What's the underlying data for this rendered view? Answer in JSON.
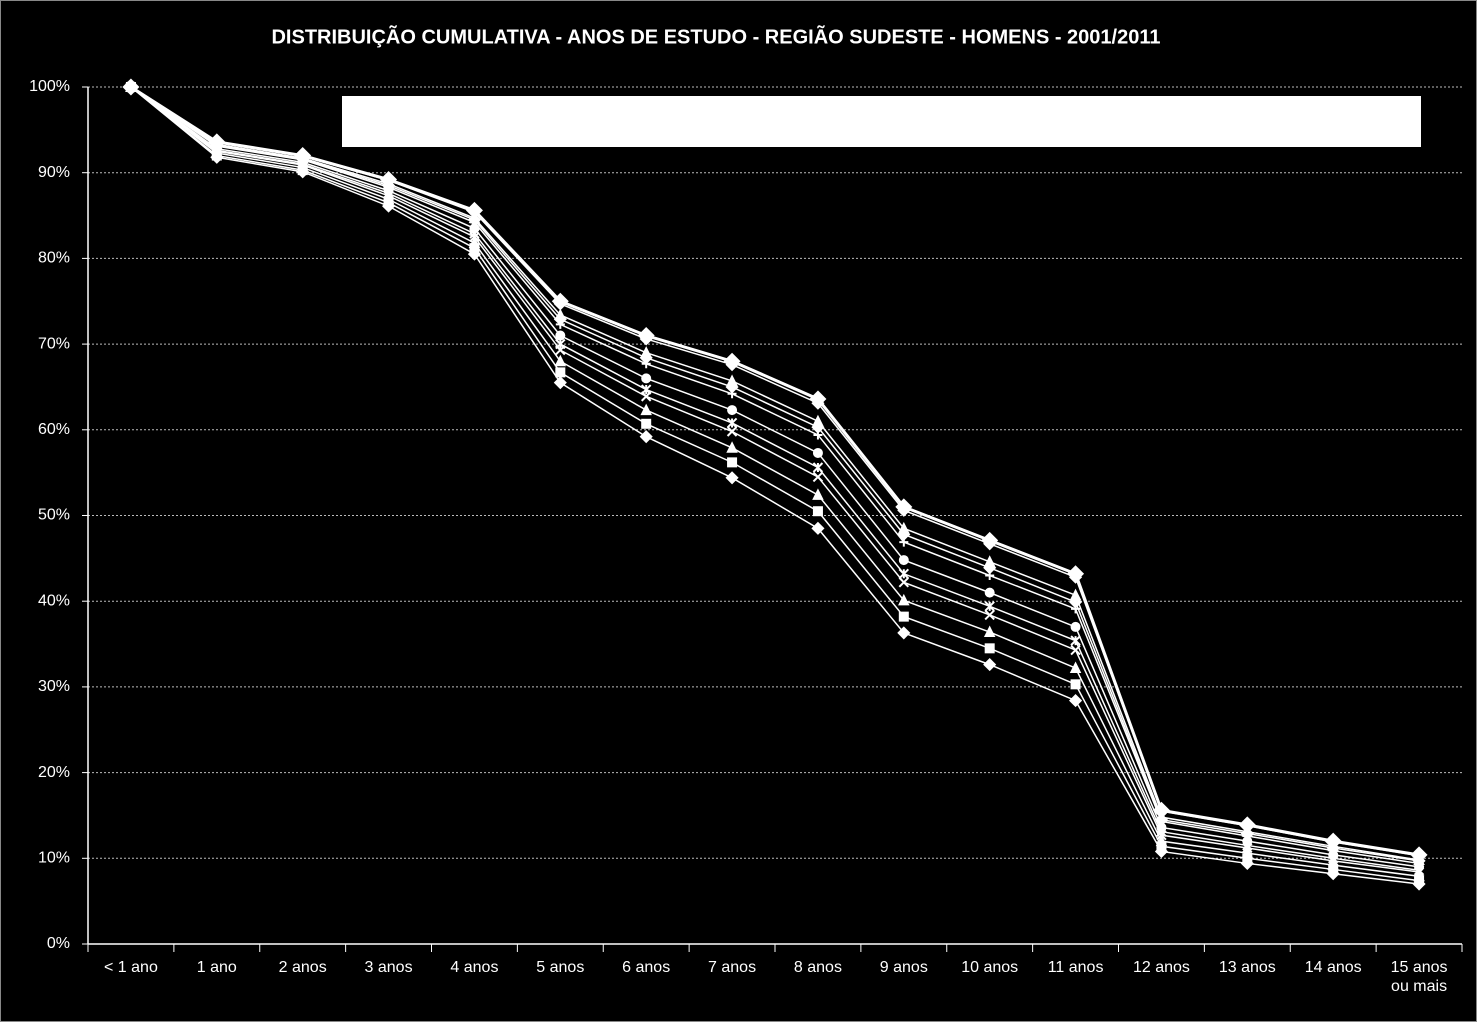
{
  "chart_data": {
    "type": "line",
    "title": "DISTRIBUIÇÃO  CUMULATIVA - ANOS DE ESTUDO - REGIÃO SUDESTE - HOMENS - 2001/2011",
    "categories": [
      "< 1 ano",
      "1 ano",
      "2 anos",
      "3 anos",
      "4 anos",
      "5 anos",
      "6 anos",
      "7 anos",
      "8 anos",
      "9 anos",
      "10 anos",
      "11 anos",
      "12 anos",
      "13 anos",
      "14 anos",
      "15 anos\nou mais"
    ],
    "ylim": [
      0,
      100
    ],
    "yticks": [
      {
        "value": 0,
        "label": "0%"
      },
      {
        "value": 10,
        "label": "10%"
      },
      {
        "value": 20,
        "label": "20%"
      },
      {
        "value": 30,
        "label": "30%"
      },
      {
        "value": 40,
        "label": "40%"
      },
      {
        "value": 50,
        "label": "50%"
      },
      {
        "value": 60,
        "label": "60%"
      },
      {
        "value": 70,
        "label": "70%"
      },
      {
        "value": 80,
        "label": "80%"
      },
      {
        "value": 90,
        "label": "90%"
      },
      {
        "value": 100,
        "label": "100%"
      }
    ],
    "grid": true,
    "series": [
      {
        "color": "#ffffff",
        "marker": "diamond",
        "values": [
          100,
          91.8,
          90.1,
          86.1,
          80.5,
          65.5,
          59.2,
          54.4,
          48.5,
          36.3,
          32.6,
          28.4,
          10.8,
          9.4,
          8.2,
          7.0
        ]
      },
      {
        "color": "#ffffff",
        "marker": "square",
        "values": [
          100,
          92.0,
          90.3,
          86.5,
          81.2,
          66.7,
          60.7,
          56.2,
          50.5,
          38.2,
          34.5,
          30.3,
          11.4,
          10.0,
          8.7,
          7.4
        ]
      },
      {
        "color": "#ffffff",
        "marker": "triangle",
        "values": [
          100,
          92.3,
          90.6,
          86.9,
          81.8,
          68.0,
          62.3,
          57.9,
          52.4,
          40.1,
          36.4,
          32.2,
          12.0,
          10.6,
          9.2,
          7.9
        ]
      },
      {
        "color": "#ffffff",
        "marker": "x",
        "values": [
          100,
          92.5,
          90.9,
          87.3,
          82.5,
          69.3,
          63.9,
          59.8,
          54.5,
          42.2,
          38.4,
          34.3,
          12.7,
          11.2,
          9.7,
          8.4
        ]
      },
      {
        "color": "#ffffff",
        "marker": "star",
        "values": [
          100,
          92.6,
          91.0,
          87.6,
          82.9,
          70.0,
          64.7,
          60.8,
          55.6,
          43.2,
          39.4,
          35.4,
          13.1,
          11.5,
          10.0,
          8.6
        ]
      },
      {
        "color": "#ffffff",
        "marker": "circle",
        "values": [
          100,
          92.8,
          91.2,
          87.9,
          83.5,
          71.0,
          66.0,
          62.3,
          57.3,
          44.8,
          41.0,
          37.0,
          13.6,
          12.0,
          10.4,
          9.0
        ]
      },
      {
        "color": "#ffffff",
        "marker": "plus",
        "values": [
          100,
          93.1,
          91.5,
          88.3,
          84.2,
          72.3,
          67.7,
          64.2,
          59.4,
          46.9,
          43.0,
          39.1,
          14.3,
          12.6,
          10.9,
          9.4
        ]
      },
      {
        "color": "#ffffff",
        "marker": "diamond",
        "values": [
          100,
          93.2,
          91.6,
          88.5,
          84.5,
          72.9,
          68.4,
          65.0,
          60.3,
          47.8,
          43.9,
          39.9,
          14.5,
          12.9,
          11.2,
          9.7
        ]
      },
      {
        "color": "#ffffff",
        "marker": "triangle",
        "values": [
          100,
          93.3,
          91.7,
          88.7,
          84.7,
          73.4,
          69.0,
          65.7,
          61.0,
          48.5,
          44.6,
          40.7,
          14.8,
          13.1,
          11.4,
          9.8
        ]
      },
      {
        "color": "#ffffff",
        "marker": "diamond",
        "values": [
          100,
          93.5,
          91.9,
          89.1,
          85.4,
          74.7,
          70.6,
          67.6,
          63.1,
          50.6,
          46.7,
          42.8,
          15.5,
          13.8,
          11.9,
          10.3
        ]
      },
      {
        "color": "#ffffff",
        "marker": "diamond",
        "values": [
          100,
          93.6,
          92.0,
          89.2,
          85.6,
          75.0,
          71.0,
          68.0,
          63.6,
          51.0,
          47.1,
          43.2,
          15.6,
          13.9,
          12.0,
          10.4
        ]
      }
    ]
  }
}
